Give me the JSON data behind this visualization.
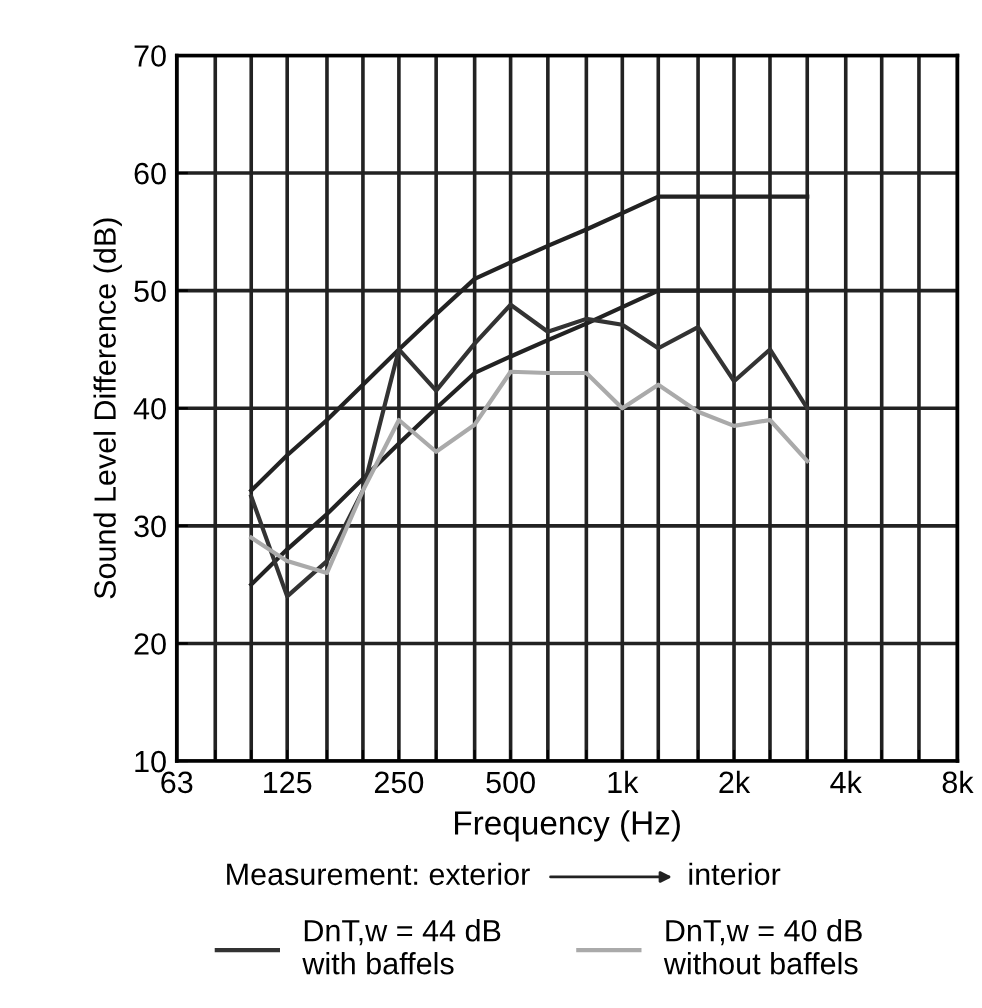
{
  "chart_data": {
    "type": "line",
    "xlabel": "Frequency (Hz)",
    "ylabel": "Sound Level Difference (dB)",
    "log": "x",
    "xlim": [
      63,
      8000
    ],
    "ylim": [
      10,
      70
    ],
    "xticks": [
      63,
      {
        "value": 80,
        "label": null
      },
      {
        "value": 100,
        "label": null
      },
      125,
      {
        "value": 160,
        "label": null
      },
      {
        "value": 200,
        "label": null
      },
      250,
      {
        "value": 315,
        "label": null
      },
      {
        "value": 400,
        "label": null
      },
      500,
      {
        "value": 630,
        "label": null
      },
      {
        "value": 800,
        "label": null
      },
      {
        "value": 1000,
        "label": "1k"
      },
      {
        "value": 1250,
        "label": null
      },
      {
        "value": 1600,
        "label": null
      },
      {
        "value": 2000,
        "label": "2k"
      },
      {
        "value": 2500,
        "label": null
      },
      {
        "value": 3150,
        "label": null
      },
      {
        "value": 4000,
        "label": "4k"
      },
      {
        "value": 5000,
        "label": null
      },
      {
        "value": 6300,
        "label": null
      },
      {
        "value": 8000,
        "label": "8k"
      }
    ],
    "yticks": [
      10,
      20,
      30,
      40,
      50,
      60,
      70
    ],
    "grid": true,
    "legend": "bottom",
    "annotations": [
      "Measurement: exterior",
      "interior"
    ],
    "x": [
      100,
      125,
      160,
      200,
      250,
      315,
      400,
      500,
      630,
      800,
      1000,
      1250,
      1600,
      2000,
      2500,
      3150
    ],
    "series": [
      {
        "color": "#222222",
        "values": [
          33,
          36,
          39,
          42,
          45,
          48,
          51,
          52.4,
          53.8,
          55.2,
          56.6,
          58,
          58,
          58,
          58,
          58
        ]
      },
      {
        "color": "#222222",
        "values": [
          25,
          28,
          31,
          34,
          37,
          40,
          43,
          44.4,
          45.8,
          47.2,
          48.6,
          50,
          50,
          50,
          50,
          50
        ]
      },
      {
        "name": "DnT,w = 44 dB\nwith baffels",
        "color": "#333333",
        "values": [
          32.5,
          24,
          27,
          33,
          45,
          41.5,
          45.5,
          48.8,
          46.5,
          47.6,
          47.1,
          45.1,
          46.9,
          42.3,
          45,
          40
        ]
      },
      {
        "name": "DnT,w = 40 dB\nwithout baffels",
        "color": "#aaaaaa",
        "values": [
          29,
          27,
          26,
          33,
          39,
          36.3,
          38.6,
          43.1,
          43,
          43,
          40,
          42,
          39.7,
          38.5,
          39,
          35.5
        ]
      }
    ]
  }
}
